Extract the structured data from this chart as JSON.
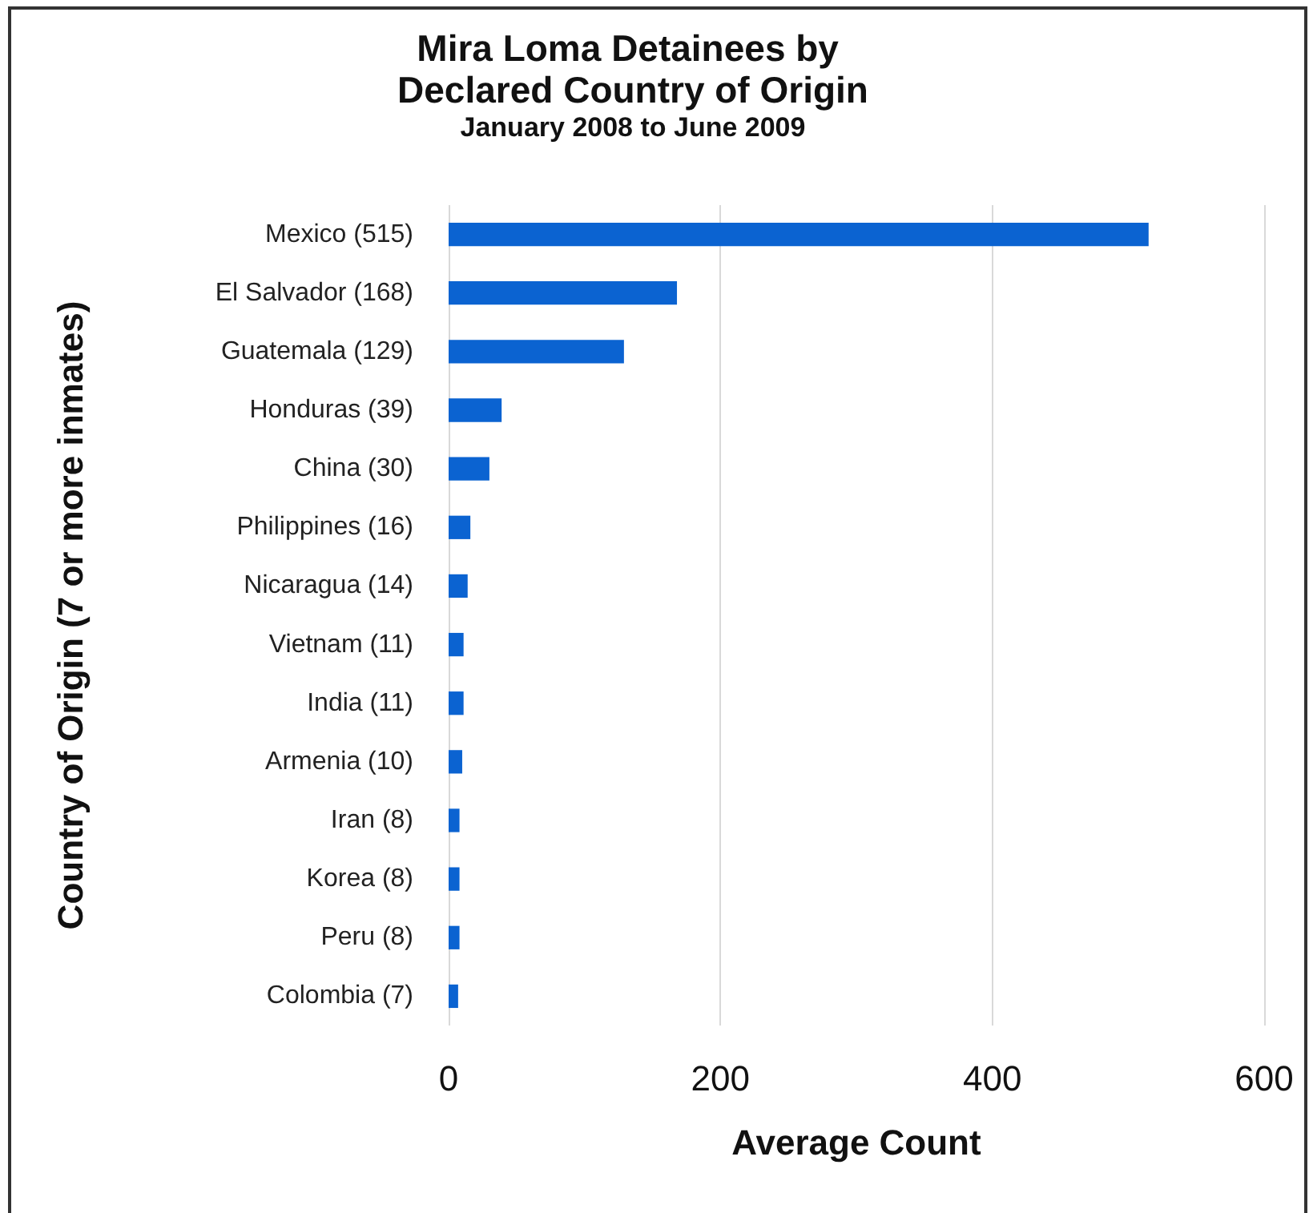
{
  "chart_data": {
    "type": "bar",
    "orientation": "horizontal",
    "title": "Mira Loma Detainees by Declared Country of Origin",
    "subtitle": "January 2008 to June 2009",
    "xlabel": "Average Count",
    "ylabel": "Country of Origin (7 or more inmates)",
    "categories": [
      "Mexico (515)",
      "El Salvador (168)",
      "Guatemala (129)",
      "Honduras (39)",
      "China (30)",
      "Philippines (16)",
      "Nicaragua (14)",
      "Vietnam (11)",
      "India (11)",
      "Armenia (10)",
      "Iran (8)",
      "Korea (8)",
      "Peru (8)",
      "Colombia (7)"
    ],
    "values": [
      515,
      168,
      129,
      39,
      30,
      16,
      14,
      11,
      11,
      10,
      8,
      8,
      8,
      7
    ],
    "color": "#0b63d1",
    "xlim": [
      0,
      600
    ],
    "xticks": [
      0,
      200,
      400,
      600
    ],
    "grid": "x"
  }
}
